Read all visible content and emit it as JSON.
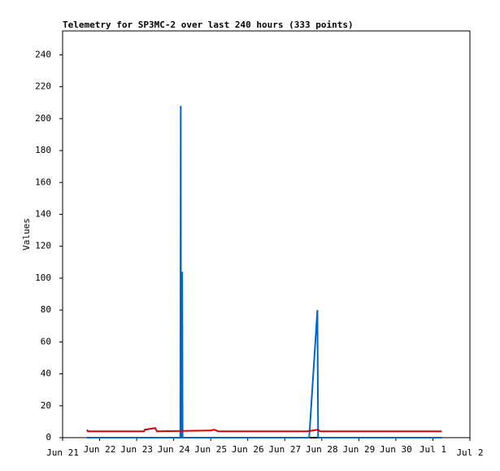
{
  "chart_data": {
    "type": "line",
    "title": "Telemetry for SP3MC-2 over last 240 hours (333 points)",
    "y_label": "Values",
    "xlim": [
      0,
      11
    ],
    "xticks": [
      {
        "value": 0,
        "label": "Jun 21"
      },
      {
        "value": 1,
        "label": "Jun 22"
      },
      {
        "value": 2,
        "label": "Jun 23"
      },
      {
        "value": 3,
        "label": "Jun 24"
      },
      {
        "value": 4,
        "label": "Jun 25"
      },
      {
        "value": 5,
        "label": "Jun 26"
      },
      {
        "value": 6,
        "label": "Jun 27"
      },
      {
        "value": 7,
        "label": "Jun 28"
      },
      {
        "value": 8,
        "label": "Jun 29"
      },
      {
        "value": 9,
        "label": "Jun 30"
      },
      {
        "value": 10,
        "label": "Jul 1"
      },
      {
        "value": 11,
        "label": "Jul 2"
      }
    ],
    "ylim": [
      0,
      255
    ],
    "yticks": [
      0,
      20,
      40,
      60,
      80,
      100,
      120,
      140,
      160,
      180,
      200,
      220,
      240
    ],
    "series": [
      {
        "color": "#000000",
        "x": [
          0.66,
          10.24
        ],
        "values": [
          0,
          0
        ]
      },
      {
        "color": "#0066cc",
        "x": [
          0.66,
          3.18,
          3.19,
          3.2,
          3.22,
          3.23,
          3.24,
          6.66,
          6.88,
          6.9,
          10.24
        ],
        "values": [
          0,
          0,
          208,
          0,
          0,
          104,
          0,
          0,
          80,
          0,
          0
        ]
      },
      {
        "color": "#dd0000",
        "x": [
          0.66,
          0.68,
          2.2,
          2.22,
          2.5,
          2.55,
          4.0,
          4.09,
          4.2,
          6.6,
          6.9,
          6.95,
          10.24
        ],
        "values": [
          5,
          4,
          4,
          5,
          6,
          4,
          4.5,
          5,
          4,
          4,
          5,
          4,
          4
        ]
      }
    ]
  }
}
